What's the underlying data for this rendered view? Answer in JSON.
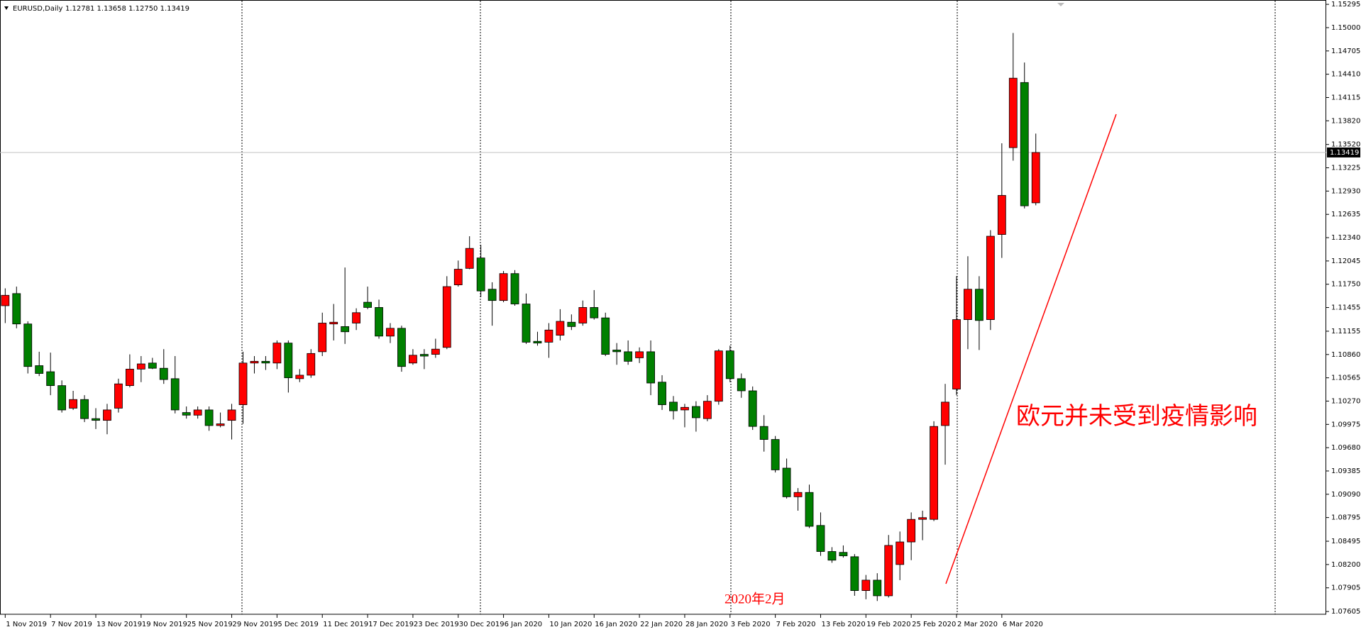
{
  "chart_data": {
    "type": "candlestick",
    "title": "EURUSD,Daily",
    "subtitle": "1.12781 1.13658 1.12750 1.13419",
    "up_color": "#ff0000",
    "down_color": "#008000",
    "categories": [
      "1 Nov 2019",
      null,
      null,
      null,
      "7 Nov 2019",
      null,
      null,
      null,
      "13 Nov 2019",
      null,
      null,
      null,
      "19 Nov 2019",
      null,
      null,
      null,
      "25 Nov 2019",
      null,
      null,
      null,
      "29 Nov 2019",
      null,
      null,
      null,
      "5 Dec 2019",
      null,
      null,
      null,
      "11 Dec 2019",
      null,
      null,
      null,
      "17 Dec 2019",
      null,
      null,
      null,
      "23 Dec 2019",
      null,
      null,
      null,
      "30 Dec 2019",
      null,
      null,
      null,
      "6 Jan 2020",
      null,
      null,
      null,
      "10 Jan 2020",
      null,
      null,
      null,
      "16 Jan 2020",
      null,
      null,
      null,
      "22 Jan 2020",
      null,
      null,
      null,
      "28 Jan 2020",
      null,
      null,
      null,
      "3 Feb 2020",
      null,
      null,
      null,
      "7 Feb 2020",
      null,
      null,
      null,
      "13 Feb 2020",
      null,
      null,
      null,
      "19 Feb 2020",
      null,
      null,
      null,
      "25 Feb 2020",
      null,
      null,
      null,
      "2 Mar 2020",
      null,
      null,
      null,
      "6 Mar 2020",
      null,
      null,
      null
    ],
    "open": [
      1.11478,
      1.11632,
      1.11247,
      1.10719,
      1.10642,
      1.10466,
      1.1018,
      1.1029,
      1.10048,
      1.10026,
      1.1018,
      1.10466,
      1.10675,
      1.10752,
      1.10686,
      1.10554,
      1.10125,
      1.10092,
      1.10158,
      1.0996,
      1.10026,
      1.10224,
      1.10752,
      1.10774,
      1.10752,
      1.11005,
      1.10554,
      1.10598,
      1.10895,
      1.11247,
      1.11214,
      1.11258,
      1.11522,
      1.11456,
      1.11093,
      1.11192,
      1.10752,
      1.10862,
      1.10862,
      1.1095,
      1.11742,
      1.11951,
      1.12083,
      1.11687,
      1.11544,
      1.11885,
      1.115,
      1.11027,
      1.11016,
      1.11104,
      1.11269,
      1.11258,
      1.11456,
      1.11324,
      1.10917,
      1.10895,
      1.10818,
      1.10895,
      1.1051,
      1.10257,
      1.10158,
      1.10202,
      1.10048,
      1.10268,
      1.10906,
      1.10554,
      1.104,
      1.09949,
      1.09784,
      1.09421,
      1.09058,
      1.09113,
      1.08695,
      1.08365,
      1.08354,
      1.08299,
      1.0787,
      1.08002,
      1.07804,
      1.082,
      1.08486,
      1.08772,
      1.08772,
      1.0996,
      1.10422,
      1.11302,
      1.11687,
      1.11302,
      1.1238,
      1.1348,
      1.14305,
      1.12781
    ],
    "high": [
      1.11698,
      1.1172,
      1.1128,
      1.10895,
      1.10884,
      1.10532,
      1.104,
      1.10345,
      1.1018,
      1.10235,
      1.10554,
      1.10862,
      1.1084,
      1.10818,
      1.10928,
      1.1084,
      1.10202,
      1.10202,
      1.10202,
      1.10125,
      1.10235,
      1.10895,
      1.1084,
      1.1084,
      1.11038,
      1.11038,
      1.10675,
      1.10928,
      1.1139,
      1.115,
      1.11962,
      1.11445,
      1.1172,
      1.11555,
      1.11258,
      1.11225,
      1.10928,
      1.10928,
      1.1106,
      1.11852,
      1.1205,
      1.12358,
      1.12248,
      1.11775,
      1.11918,
      1.11929,
      1.11632,
      1.11148,
      1.11258,
      1.11434,
      1.11368,
      1.11544,
      1.11676,
      1.1139,
      1.11005,
      1.11038,
      1.1095,
      1.11038,
      1.10598,
      1.10334,
      1.10235,
      1.10268,
      1.10345,
      1.10928,
      1.10972,
      1.1062,
      1.10455,
      1.10092,
      1.09828,
      1.09542,
      1.09168,
      1.09212,
      1.0886,
      1.0842,
      1.08442,
      1.08332,
      1.08068,
      1.0809,
      1.08574,
      1.08618,
      1.0886,
      1.08882,
      1.10015,
      1.10488,
      1.11852,
      1.12105,
      1.11852,
      1.12435,
      1.13535,
      1.14932,
      1.14558,
      1.13658
    ],
    "low": [
      1.11258,
      1.11192,
      1.1062,
      1.10587,
      1.10345,
      1.10125,
      1.10158,
      1.10004,
      1.09916,
      1.0985,
      1.10125,
      1.10444,
      1.1051,
      1.10675,
      1.10488,
      1.10114,
      1.10048,
      1.10048,
      1.09894,
      1.09938,
      1.09784,
      1.09982,
      1.1062,
      1.10664,
      1.10675,
      1.10378,
      1.1051,
      1.10565,
      1.1084,
      1.11038,
      1.10994,
      1.1117,
      1.11434,
      1.1106,
      1.11005,
      1.10642,
      1.1073,
      1.10675,
      1.10818,
      1.10928,
      1.1172,
      1.1194,
      1.11588,
      1.11225,
      1.11522,
      1.11478,
      1.10994,
      1.10972,
      1.10818,
      1.11038,
      1.1117,
      1.11225,
      1.11302,
      1.1084,
      1.1073,
      1.1073,
      1.10752,
      1.10345,
      1.10158,
      1.10037,
      1.09938,
      1.09883,
      1.10015,
      1.10224,
      1.1051,
      1.10312,
      1.09905,
      1.0963,
      1.09366,
      1.09036,
      1.08882,
      1.08662,
      1.0831,
      1.08222,
      1.08288,
      1.07804,
      1.0776,
      1.07738,
      1.07782,
      1.08002,
      1.08255,
      1.08508,
      1.0875,
      1.09465,
      1.10345,
      1.10928,
      1.10917,
      1.1117,
      1.12083,
      1.13315,
      1.1271,
      1.1275
    ],
    "close": [
      1.1161,
      1.11247,
      1.10708,
      1.1062,
      1.10466,
      1.10158,
      1.1029,
      1.10048,
      1.10026,
      1.10158,
      1.10488,
      1.10675,
      1.10741,
      1.10686,
      1.10543,
      1.10158,
      1.10092,
      1.10158,
      1.0996,
      1.09982,
      1.10158,
      1.10752,
      1.10774,
      1.10752,
      1.11005,
      1.10565,
      1.10598,
      1.10873,
      1.11258,
      1.11269,
      1.11148,
      1.1139,
      1.11456,
      1.11093,
      1.11192,
      1.10708,
      1.10851,
      1.1084,
      1.10928,
      1.1172,
      1.1194,
      1.12204,
      1.11665,
      1.11544,
      1.11885,
      1.115,
      1.11016,
      1.11005,
      1.1117,
      1.1128,
      1.11214,
      1.11456,
      1.11324,
      1.10862,
      1.10895,
      1.10774,
      1.10895,
      1.10499,
      1.10224,
      1.10147,
      1.10191,
      1.10059,
      1.10268,
      1.10906,
      1.10554,
      1.104,
      1.09949,
      1.09784,
      1.09399,
      1.09058,
      1.09113,
      1.08684,
      1.08365,
      1.08255,
      1.0831,
      1.0787,
      1.08002,
      1.07804,
      1.08442,
      1.08486,
      1.08772,
      1.08794,
      1.09949,
      1.10257,
      1.11302,
      1.11687,
      1.11291,
      1.12358,
      1.12875,
      1.1436,
      1.12743,
      1.13419
    ],
    "current_price": 1.13419,
    "ylim": [
      1.0757,
      1.1535
    ],
    "yticks": [
      1.15295,
      {
        "value": 1.15,
        "label": "1.15000"
      },
      1.14705,
      {
        "value": 1.1441,
        "label": "1.14410"
      },
      1.14115,
      {
        "value": 1.1382,
        "label": "1.13820"
      },
      {
        "value": 1.1352,
        "label": "1.13520"
      },
      1.13225,
      {
        "value": 1.1293,
        "label": "1.12930"
      },
      1.12635,
      {
        "value": 1.1234,
        "label": "1.12340"
      },
      1.12045,
      {
        "value": 1.1175,
        "label": "1.11750"
      },
      1.11455,
      1.11155,
      {
        "value": 1.1086,
        "label": "1.10860"
      },
      1.10565,
      {
        "value": 1.1027,
        "label": "1.10270"
      },
      1.09975,
      {
        "value": 1.0968,
        "label": "1.09680"
      },
      1.09385,
      {
        "value": 1.0909,
        "label": "1.09090"
      },
      1.08795,
      1.08495,
      {
        "value": 1.082,
        "label": "1.08200"
      },
      1.07905,
      1.07605
    ],
    "annotations": [
      "欧元并未受到疫情影响",
      "2020年2月"
    ]
  }
}
